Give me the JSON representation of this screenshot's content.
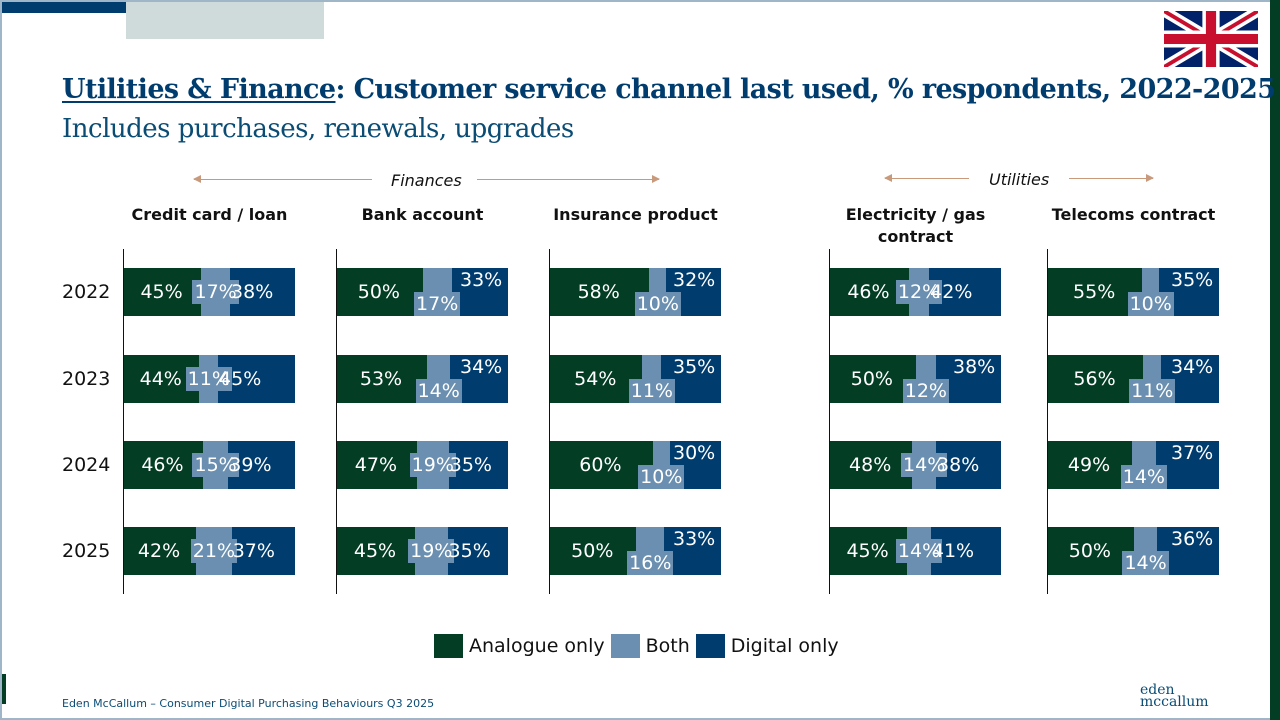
{
  "title": {
    "prefix": "Utilities & Finance",
    "rest": ": Customer service channel last used, % respondents, 2022-2025"
  },
  "subtitle": "Includes purchases, renewals, upgrades",
  "flag_icon": "uk-flag-icon",
  "groups": [
    {
      "label": "Finances"
    },
    {
      "label": "Utilities"
    }
  ],
  "footer": "Eden McCallum – Consumer Digital Purchasing Behaviours Q3 2025",
  "logo": {
    "line1": "eden",
    "line2": "mccallum"
  },
  "colors": {
    "analogue": "#033d24",
    "both": "#6a8fb0",
    "digital": "#003d6e"
  },
  "chart_data": {
    "type": "bar",
    "subtype": "stacked-horizontal-100",
    "title": "Utilities & Finance: Customer service channel last used, % respondents, 2022-2025",
    "subtitle": "Includes purchases, renewals, upgrades",
    "years": [
      "2022",
      "2023",
      "2024",
      "2025"
    ],
    "legend": [
      "Analogue only",
      "Both",
      "Digital only"
    ],
    "legend_position": "bottom",
    "unit": "%",
    "panels": [
      {
        "group": "Finances",
        "label": "Credit card / loan",
        "analogue": [
          45,
          44,
          46,
          42
        ],
        "both": [
          17,
          11,
          15,
          21
        ],
        "digital": [
          38,
          45,
          39,
          37
        ]
      },
      {
        "group": "Finances",
        "label": "Bank account",
        "analogue": [
          50,
          53,
          47,
          45
        ],
        "both": [
          17,
          14,
          19,
          19
        ],
        "digital": [
          33,
          34,
          35,
          35
        ]
      },
      {
        "group": "Finances",
        "label": "Insurance product",
        "analogue": [
          58,
          54,
          60,
          50
        ],
        "both": [
          10,
          11,
          10,
          16
        ],
        "digital": [
          32,
          35,
          30,
          33
        ]
      },
      {
        "group": "Utilities",
        "label": "Electricity / gas contract",
        "analogue": [
          46,
          50,
          48,
          45
        ],
        "both": [
          12,
          12,
          14,
          14
        ],
        "digital": [
          42,
          38,
          38,
          41
        ]
      },
      {
        "group": "Utilities",
        "label": "Telecoms contract",
        "analogue": [
          55,
          56,
          49,
          50
        ],
        "both": [
          10,
          11,
          14,
          14
        ],
        "digital": [
          35,
          34,
          37,
          36
        ]
      }
    ]
  }
}
